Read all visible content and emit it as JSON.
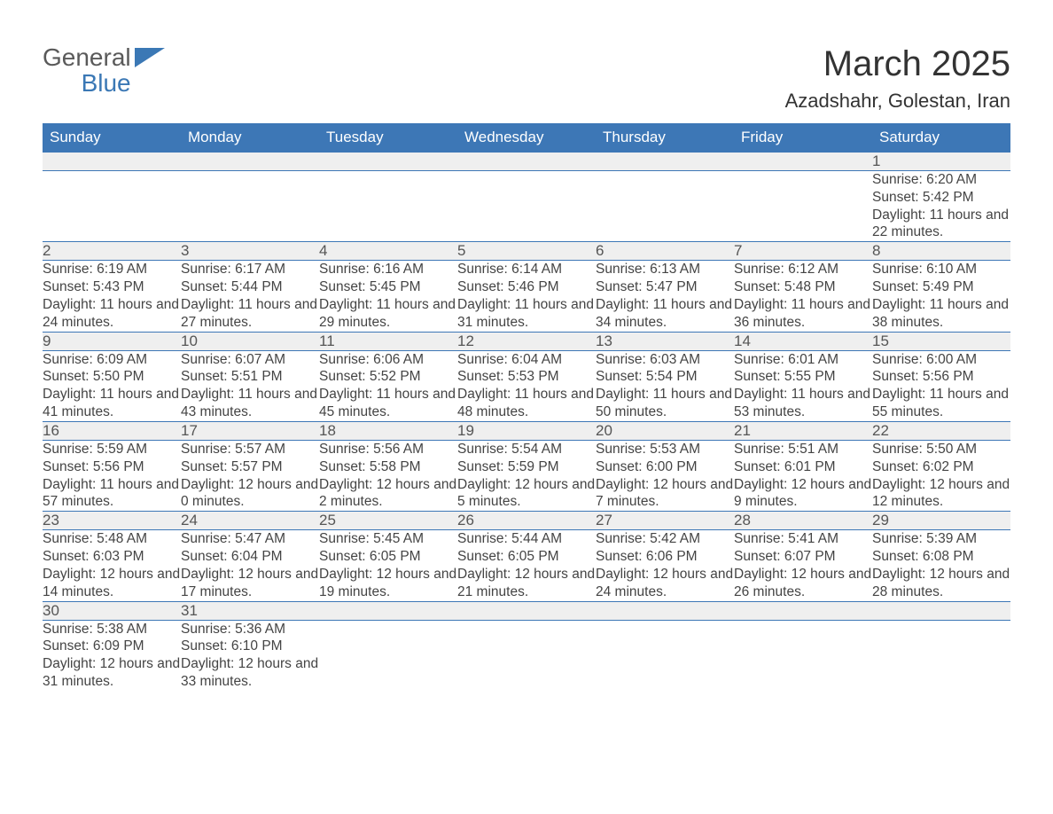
{
  "logo": {
    "word1": "General",
    "word2": "Blue"
  },
  "title": "March 2025",
  "location": "Azadshahr, Golestan, Iran",
  "colors": {
    "header_bg": "#3d77b6",
    "header_text": "#ffffff",
    "daynum_bg": "#efefef",
    "rule": "#3d77b6",
    "text": "#333333",
    "logo_gray": "#5a5a5a",
    "logo_blue": "#3b78b5",
    "page_bg": "#ffffff"
  },
  "font": {
    "family": "Arial",
    "body_size_pt": 12,
    "title_size_pt": 30,
    "location_size_pt": 16,
    "header_size_pt": 13
  },
  "columns": [
    "Sunday",
    "Monday",
    "Tuesday",
    "Wednesday",
    "Thursday",
    "Friday",
    "Saturday"
  ],
  "labels": {
    "sunrise": "Sunrise: ",
    "sunset": "Sunset: ",
    "daylight_prefix": "Daylight: ",
    "daylight_join": " and ",
    "daylight_suffix": "."
  },
  "weeks": [
    [
      null,
      null,
      null,
      null,
      null,
      null,
      {
        "n": 1,
        "sunrise": "6:20 AM",
        "sunset": "5:42 PM",
        "dl_h": 11,
        "dl_m": 22
      }
    ],
    [
      {
        "n": 2,
        "sunrise": "6:19 AM",
        "sunset": "5:43 PM",
        "dl_h": 11,
        "dl_m": 24
      },
      {
        "n": 3,
        "sunrise": "6:17 AM",
        "sunset": "5:44 PM",
        "dl_h": 11,
        "dl_m": 27
      },
      {
        "n": 4,
        "sunrise": "6:16 AM",
        "sunset": "5:45 PM",
        "dl_h": 11,
        "dl_m": 29
      },
      {
        "n": 5,
        "sunrise": "6:14 AM",
        "sunset": "5:46 PM",
        "dl_h": 11,
        "dl_m": 31
      },
      {
        "n": 6,
        "sunrise": "6:13 AM",
        "sunset": "5:47 PM",
        "dl_h": 11,
        "dl_m": 34
      },
      {
        "n": 7,
        "sunrise": "6:12 AM",
        "sunset": "5:48 PM",
        "dl_h": 11,
        "dl_m": 36
      },
      {
        "n": 8,
        "sunrise": "6:10 AM",
        "sunset": "5:49 PM",
        "dl_h": 11,
        "dl_m": 38
      }
    ],
    [
      {
        "n": 9,
        "sunrise": "6:09 AM",
        "sunset": "5:50 PM",
        "dl_h": 11,
        "dl_m": 41
      },
      {
        "n": 10,
        "sunrise": "6:07 AM",
        "sunset": "5:51 PM",
        "dl_h": 11,
        "dl_m": 43
      },
      {
        "n": 11,
        "sunrise": "6:06 AM",
        "sunset": "5:52 PM",
        "dl_h": 11,
        "dl_m": 45
      },
      {
        "n": 12,
        "sunrise": "6:04 AM",
        "sunset": "5:53 PM",
        "dl_h": 11,
        "dl_m": 48
      },
      {
        "n": 13,
        "sunrise": "6:03 AM",
        "sunset": "5:54 PM",
        "dl_h": 11,
        "dl_m": 50
      },
      {
        "n": 14,
        "sunrise": "6:01 AM",
        "sunset": "5:55 PM",
        "dl_h": 11,
        "dl_m": 53
      },
      {
        "n": 15,
        "sunrise": "6:00 AM",
        "sunset": "5:56 PM",
        "dl_h": 11,
        "dl_m": 55
      }
    ],
    [
      {
        "n": 16,
        "sunrise": "5:59 AM",
        "sunset": "5:56 PM",
        "dl_h": 11,
        "dl_m": 57
      },
      {
        "n": 17,
        "sunrise": "5:57 AM",
        "sunset": "5:57 PM",
        "dl_h": 12,
        "dl_m": 0
      },
      {
        "n": 18,
        "sunrise": "5:56 AM",
        "sunset": "5:58 PM",
        "dl_h": 12,
        "dl_m": 2
      },
      {
        "n": 19,
        "sunrise": "5:54 AM",
        "sunset": "5:59 PM",
        "dl_h": 12,
        "dl_m": 5
      },
      {
        "n": 20,
        "sunrise": "5:53 AM",
        "sunset": "6:00 PM",
        "dl_h": 12,
        "dl_m": 7
      },
      {
        "n": 21,
        "sunrise": "5:51 AM",
        "sunset": "6:01 PM",
        "dl_h": 12,
        "dl_m": 9
      },
      {
        "n": 22,
        "sunrise": "5:50 AM",
        "sunset": "6:02 PM",
        "dl_h": 12,
        "dl_m": 12
      }
    ],
    [
      {
        "n": 23,
        "sunrise": "5:48 AM",
        "sunset": "6:03 PM",
        "dl_h": 12,
        "dl_m": 14
      },
      {
        "n": 24,
        "sunrise": "5:47 AM",
        "sunset": "6:04 PM",
        "dl_h": 12,
        "dl_m": 17
      },
      {
        "n": 25,
        "sunrise": "5:45 AM",
        "sunset": "6:05 PM",
        "dl_h": 12,
        "dl_m": 19
      },
      {
        "n": 26,
        "sunrise": "5:44 AM",
        "sunset": "6:05 PM",
        "dl_h": 12,
        "dl_m": 21
      },
      {
        "n": 27,
        "sunrise": "5:42 AM",
        "sunset": "6:06 PM",
        "dl_h": 12,
        "dl_m": 24
      },
      {
        "n": 28,
        "sunrise": "5:41 AM",
        "sunset": "6:07 PM",
        "dl_h": 12,
        "dl_m": 26
      },
      {
        "n": 29,
        "sunrise": "5:39 AM",
        "sunset": "6:08 PM",
        "dl_h": 12,
        "dl_m": 28
      }
    ],
    [
      {
        "n": 30,
        "sunrise": "5:38 AM",
        "sunset": "6:09 PM",
        "dl_h": 12,
        "dl_m": 31
      },
      {
        "n": 31,
        "sunrise": "5:36 AM",
        "sunset": "6:10 PM",
        "dl_h": 12,
        "dl_m": 33
      },
      null,
      null,
      null,
      null,
      null
    ]
  ]
}
